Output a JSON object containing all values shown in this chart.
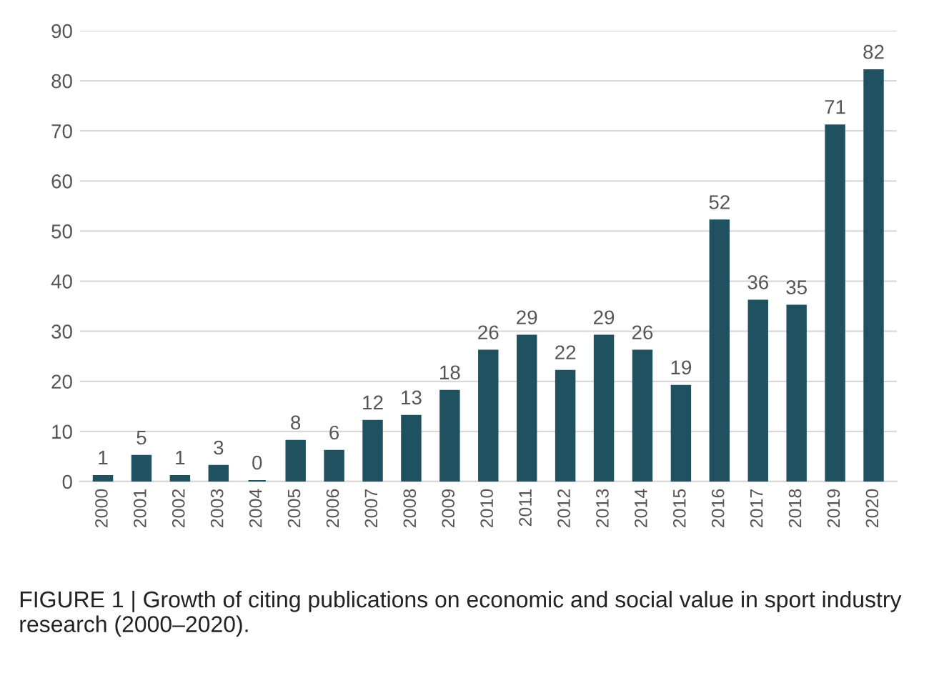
{
  "chart_data": {
    "type": "bar",
    "categories": [
      "2000",
      "2001",
      "2002",
      "2003",
      "2004",
      "2005",
      "2006",
      "2007",
      "2008",
      "2009",
      "2010",
      "2011",
      "2012",
      "2013",
      "2014",
      "2015",
      "2016",
      "2017",
      "2018",
      "2019",
      "2020"
    ],
    "values": [
      1,
      5,
      1,
      3,
      0,
      8,
      6,
      12,
      13,
      18,
      26,
      29,
      22,
      29,
      26,
      19,
      52,
      36,
      35,
      71,
      82
    ],
    "color": "#1f5160",
    "ylim": [
      0,
      90
    ],
    "yticks": [
      0,
      10,
      20,
      30,
      40,
      50,
      60,
      70,
      80,
      90
    ],
    "grid": "y",
    "data_labels": true,
    "annotations": [
      "FIGURE 1 | Growth of citing publications on economic and social value in sport industry research (2000–2020)."
    ]
  }
}
